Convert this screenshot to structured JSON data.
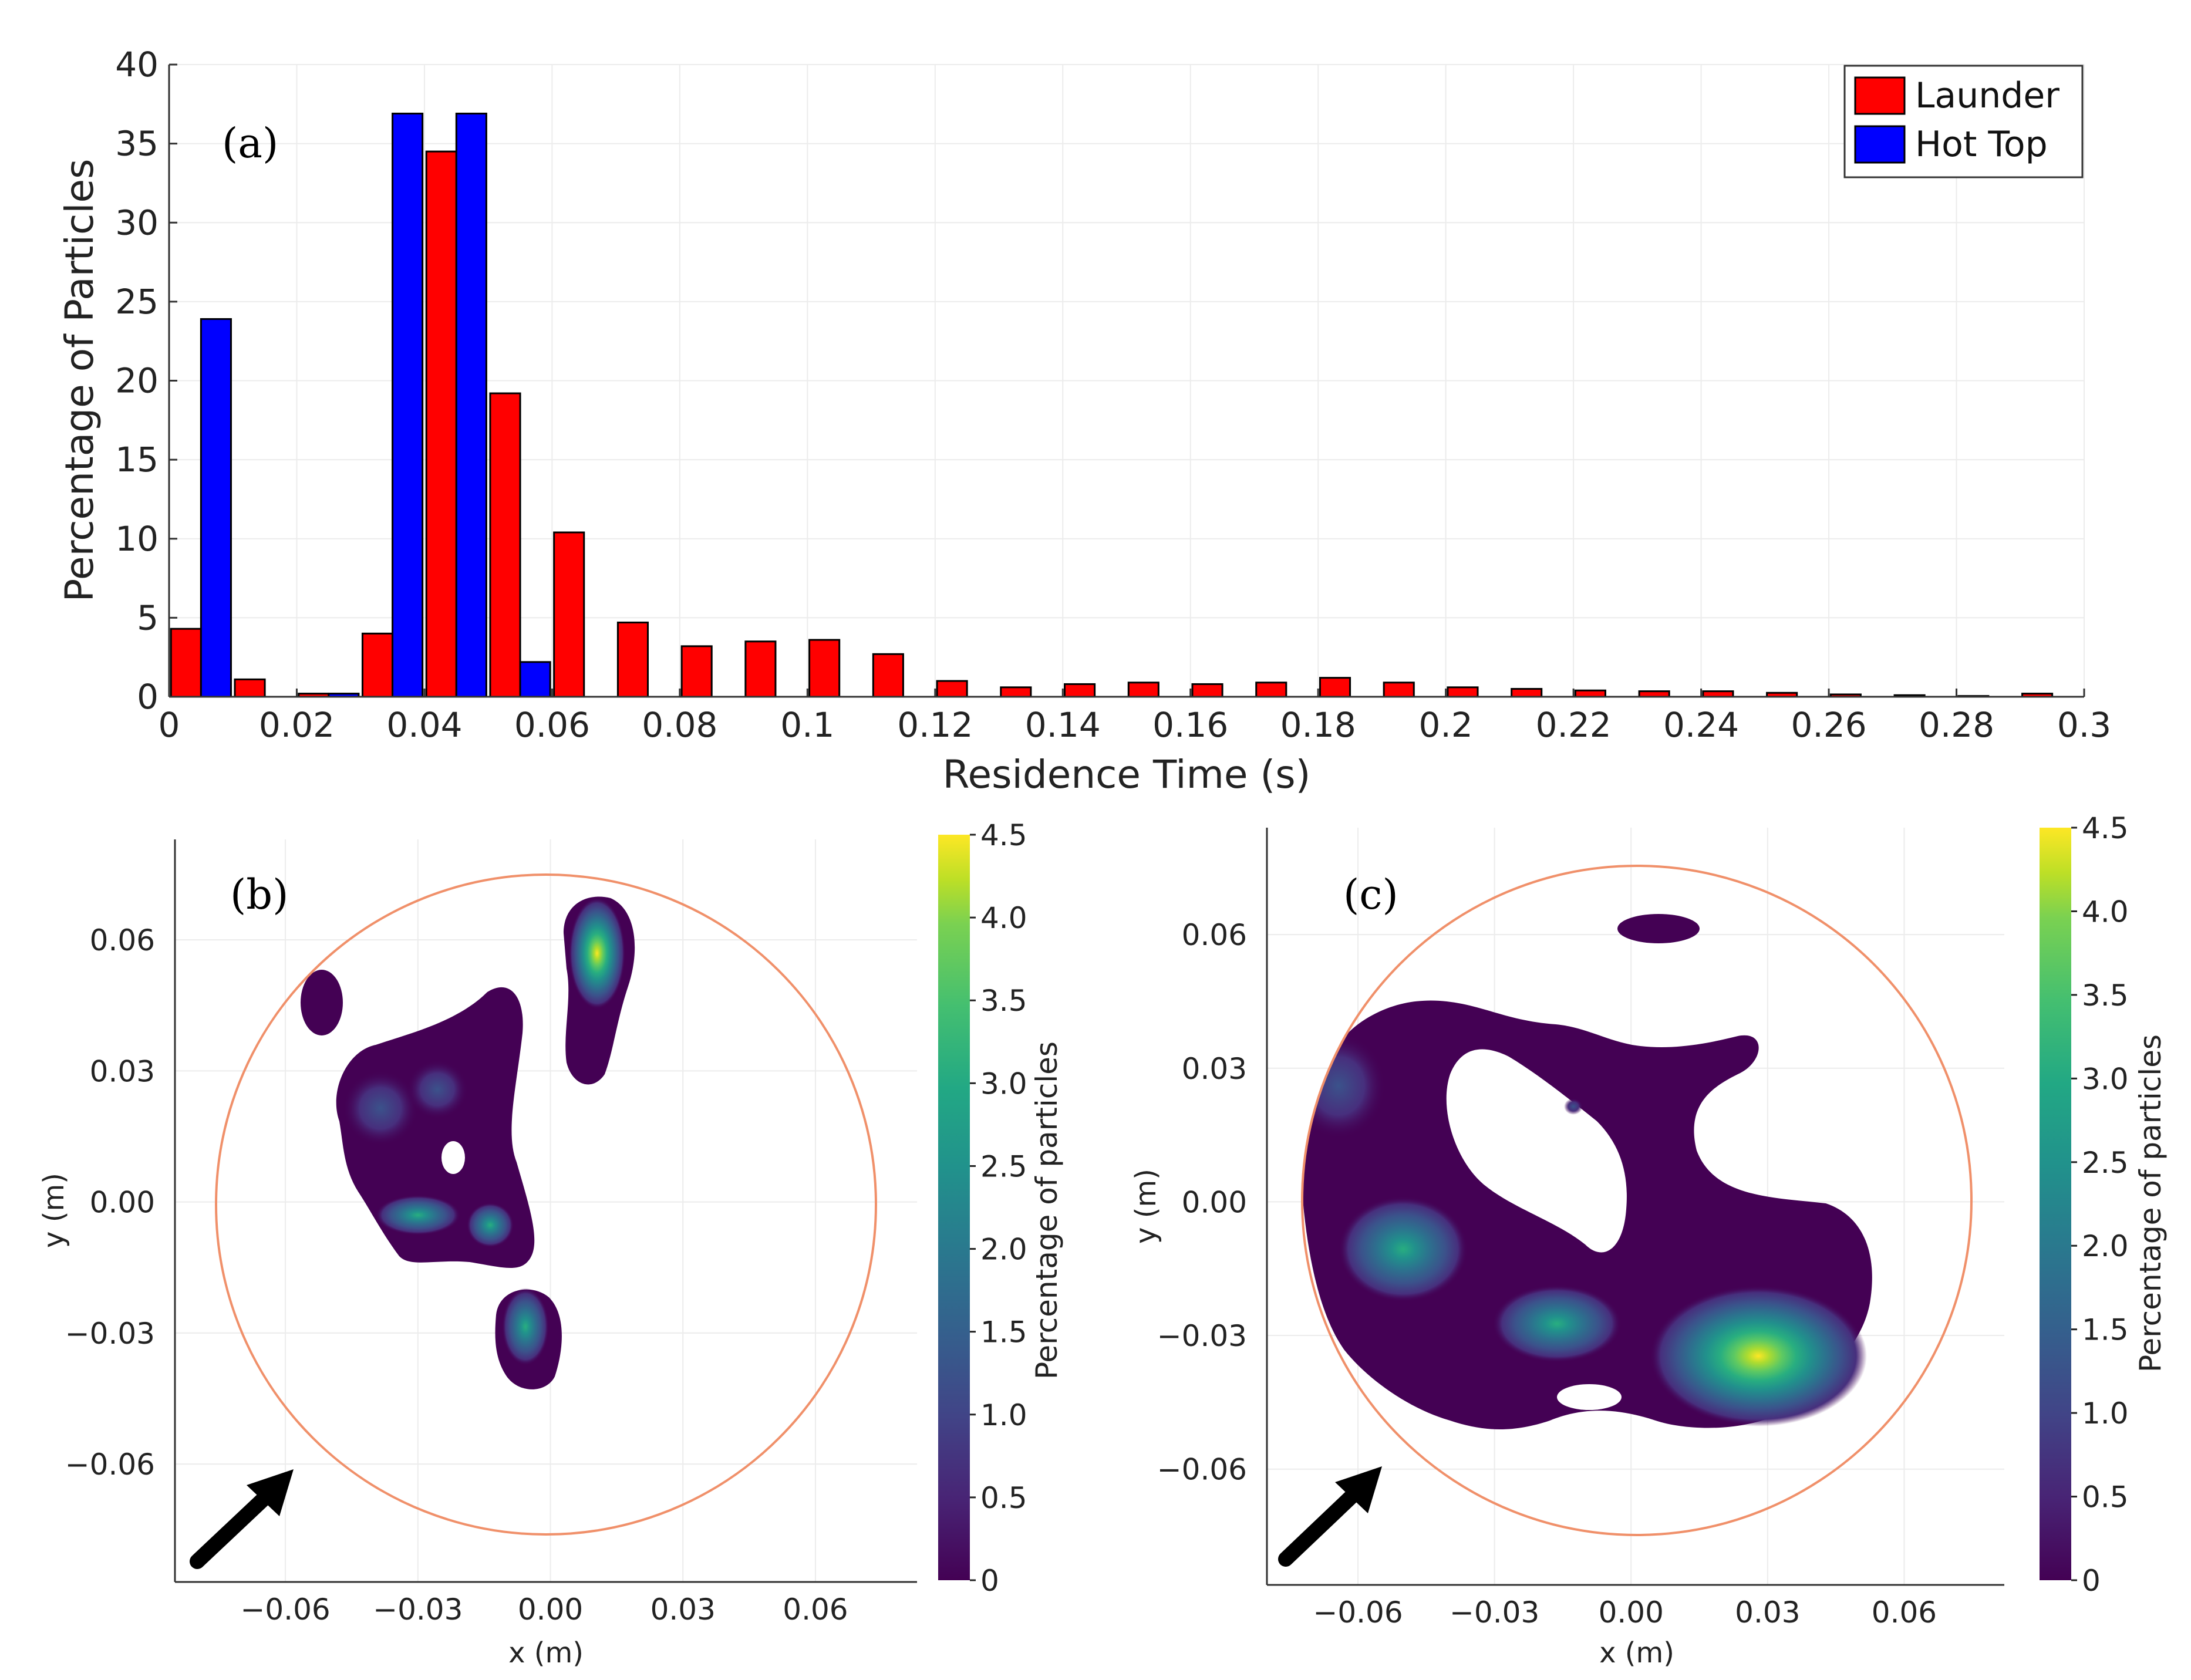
{
  "chart_data": [
    {
      "type": "bar",
      "panel_label": "(a)",
      "xlabel": "Residence Time (s)",
      "ylabel": "Percentage of Particles",
      "xlim": [
        0,
        0.3
      ],
      "ylim": [
        0,
        40
      ],
      "xticks": [
        "0",
        "0.02",
        "0.04",
        "0.06",
        "0.08",
        "0.1",
        "0.12",
        "0.14",
        "0.16",
        "0.18",
        "0.2",
        "0.22",
        "0.24",
        "0.26",
        "0.28",
        "0.3"
      ],
      "yticks": [
        "0",
        "5",
        "10",
        "15",
        "20",
        "25",
        "30",
        "35",
        "40"
      ],
      "bin_width": 0.01,
      "bin_starts": [
        0,
        0.01,
        0.02,
        0.03,
        0.04,
        0.05,
        0.06,
        0.07,
        0.08,
        0.09,
        0.1,
        0.11,
        0.12,
        0.13,
        0.14,
        0.15,
        0.16,
        0.17,
        0.18,
        0.19,
        0.2,
        0.21,
        0.22,
        0.23,
        0.24,
        0.25,
        0.26,
        0.27,
        0.28,
        0.29
      ],
      "legend_position": "top-right",
      "series": [
        {
          "name": "Launder",
          "color": "#ff0000",
          "values": [
            4.3,
            1.1,
            0.2,
            4.0,
            34.5,
            19.2,
            10.4,
            4.7,
            3.2,
            3.5,
            3.6,
            2.7,
            1.0,
            0.6,
            0.8,
            0.9,
            0.8,
            0.9,
            1.2,
            0.9,
            0.6,
            0.5,
            0.4,
            0.35,
            0.35,
            0.25,
            0.15,
            0.1,
            0.05,
            0.2
          ]
        },
        {
          "name": "Hot Top",
          "color": "#0000ff",
          "values": [
            23.9,
            0.0,
            0.2,
            36.9,
            36.9,
            2.2,
            0,
            0,
            0,
            0,
            0,
            0,
            0,
            0,
            0,
            0,
            0,
            0,
            0,
            0,
            0,
            0,
            0,
            0,
            0,
            0,
            0,
            0,
            0,
            0
          ]
        }
      ]
    },
    {
      "type": "heatmap",
      "subtype": "contour",
      "panel_label": "(b)",
      "xlabel": "x (m)",
      "ylabel": "y (m)",
      "xlim": [
        -0.085,
        0.083
      ],
      "ylim": [
        -0.087,
        0.083
      ],
      "xticks": [
        "−0.06",
        "−0.03",
        "0.00",
        "0.03",
        "0.06"
      ],
      "yticks": [
        "0.06",
        "0.03",
        "0.00",
        "−0.03",
        "−0.06"
      ],
      "tick_values": [
        -0.06,
        -0.03,
        0.0,
        0.03,
        0.06
      ],
      "boundary_radius": 0.075,
      "colorbar_label": "Percentage of particles",
      "colorbar_ticks": [
        "0",
        "0.5",
        "1.0",
        "1.5",
        "2.0",
        "2.5",
        "3.0",
        "3.5",
        "4.0",
        "4.5"
      ],
      "colorbar_range": [
        0,
        4.5
      ],
      "peaks": [
        {
          "x": 0.012,
          "y": 0.057,
          "value": 4.3
        },
        {
          "x": -0.03,
          "y": -0.003,
          "value": 2.6
        },
        {
          "x": -0.013,
          "y": -0.005,
          "value": 2.3
        },
        {
          "x": -0.005,
          "y": -0.028,
          "value": 2.0
        },
        {
          "x": -0.038,
          "y": 0.022,
          "value": 1.2
        },
        {
          "x": -0.025,
          "y": 0.026,
          "value": 0.9
        }
      ]
    },
    {
      "type": "heatmap",
      "subtype": "contour",
      "panel_label": "(c)",
      "xlabel": "x (m)",
      "ylabel": "y (m)",
      "xlim": [
        -0.08,
        0.082
      ],
      "ylim": [
        -0.086,
        0.084
      ],
      "xticks": [
        "−0.06",
        "−0.03",
        "0.00",
        "0.03",
        "0.06"
      ],
      "yticks": [
        "0.06",
        "0.03",
        "0.00",
        "−0.03",
        "−0.06"
      ],
      "tick_values": [
        -0.06,
        -0.03,
        0.0,
        0.03,
        0.06
      ],
      "boundary_radius": 0.075,
      "colorbar_label": "Percentage of particles",
      "colorbar_ticks": [
        "0",
        "0.5",
        "1.0",
        "1.5",
        "2.0",
        "2.5",
        "3.0",
        "3.5",
        "4.0",
        "4.5"
      ],
      "colorbar_range": [
        0,
        4.5
      ],
      "peaks": [
        {
          "x": 0.028,
          "y": -0.038,
          "value": 4.1
        },
        {
          "x": -0.048,
          "y": -0.011,
          "value": 1.9
        },
        {
          "x": -0.018,
          "y": -0.028,
          "value": 1.6
        }
      ]
    }
  ],
  "colors": {
    "boundary_circle": "#f0906a",
    "arrow": "#000000",
    "grid": "#ececec",
    "viridis": [
      "#440154",
      "#472f7d",
      "#3b528b",
      "#2c728e",
      "#21918c",
      "#28ae80",
      "#5ec962",
      "#addc30",
      "#d8e219",
      "#fde725"
    ]
  }
}
